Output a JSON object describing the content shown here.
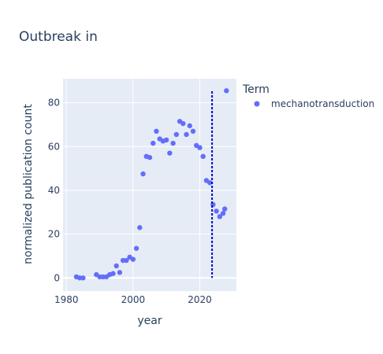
{
  "chart_data": {
    "type": "scatter",
    "title": "Outbreak in",
    "xlabel": "year",
    "ylabel": "normalized publication count",
    "xlim": [
      1979,
      2031
    ],
    "ylim": [
      -6,
      91
    ],
    "xticks": [
      1980,
      2000,
      2020
    ],
    "yticks": [
      0,
      20,
      40,
      60,
      80
    ],
    "grid": true,
    "legend": {
      "title": "Term",
      "position": "right"
    },
    "marker_color": "#636efa",
    "vline": {
      "x": 2023.7,
      "color": "#0000cc",
      "style": "dotted"
    },
    "series": [
      {
        "name": "mechanotransduction",
        "x": [
          1983,
          1984,
          1985,
          1989,
          1990,
          1991,
          1992,
          1993,
          1994,
          1995,
          1996,
          1997,
          1998,
          1999,
          2000,
          2001,
          2002,
          2003,
          2004,
          2005,
          2006,
          2007,
          2008,
          2009,
          2010,
          2011,
          2012,
          2013,
          2014,
          2015,
          2016,
          2017,
          2018,
          2019,
          2020,
          2021,
          2022,
          2023,
          2024,
          2025,
          2026,
          2027,
          2027.5,
          2028
        ],
        "y": [
          0.5,
          0,
          0,
          1.5,
          0.5,
          0.5,
          0.5,
          1.5,
          2,
          5.5,
          2.5,
          8,
          8,
          9.5,
          8.5,
          13.5,
          23,
          47.5,
          55.5,
          55,
          61.5,
          67,
          63.5,
          62.5,
          63,
          57,
          61.5,
          65.5,
          71.5,
          70.5,
          65.5,
          69.5,
          67,
          60.5,
          59.5,
          55.5,
          44.5,
          43.5,
          33.5,
          30.5,
          28,
          29.5,
          31.5,
          85.5
        ]
      }
    ]
  }
}
